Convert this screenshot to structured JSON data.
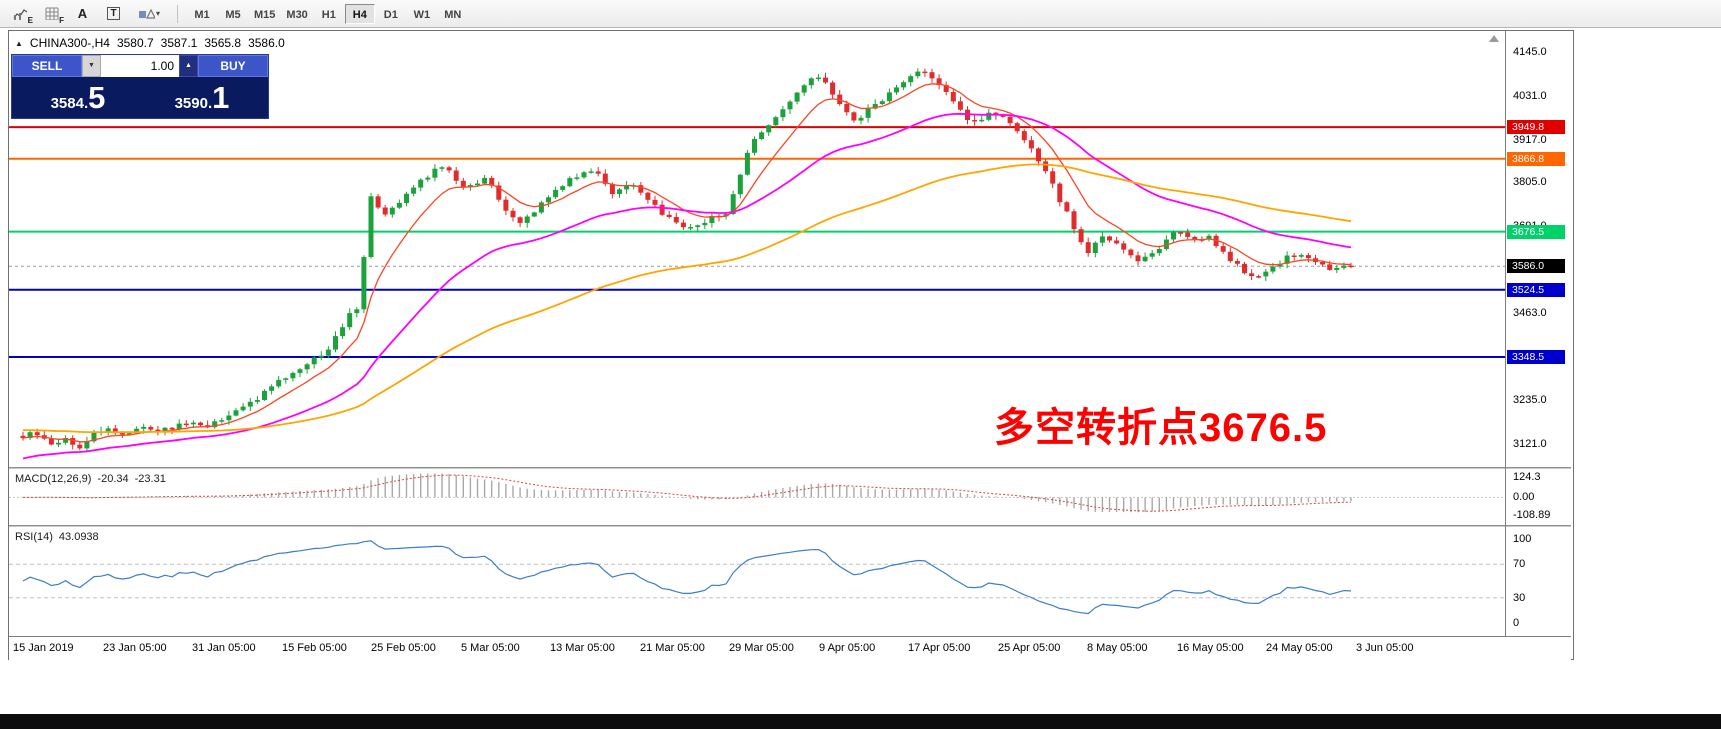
{
  "colors": {
    "candle_up": "#1ca23c",
    "candle_down": "#e02c2c",
    "ma_fast": "#ff4422",
    "ma_mid": "#ff00ff",
    "ma_slow": "#ffa500",
    "macd_hist": "#a8a8a8",
    "macd_signal": "#e04040",
    "rsi_line": "#3b7dc8",
    "level_red": "#e00000",
    "level_orange": "#ff6600",
    "level_green": "#00d26a",
    "level_blue": "#0000cc",
    "current_badge": "#000000"
  },
  "toolbar": {
    "tools": {
      "tool_e_badge": "E",
      "tool_f_badge": "F",
      "text_tool_glyph": "A",
      "label_tool_glyph": "T",
      "shapes_caret": "▾"
    },
    "timeframes": [
      "M1",
      "M5",
      "M15",
      "M30",
      "H1",
      "H4",
      "D1",
      "W1",
      "MN"
    ],
    "active_timeframe": "H4"
  },
  "chart": {
    "symbol_line": {
      "collapse_glyph": "▲",
      "symbol": "CHINA300-,H4",
      "open": "3580.7",
      "high": "3587.1",
      "low": "3565.8",
      "close": "3586.0"
    },
    "trade_panel": {
      "sell_label": "SELL",
      "buy_label": "BUY",
      "volume": "1.00",
      "spin_down_glyph": "▼",
      "spin_up_glyph": "▲",
      "sell_price_base": "3584.",
      "sell_price_big": "5",
      "buy_price_base": "3590.",
      "buy_price_big": "1"
    },
    "annotation": "多空转折点3676.5",
    "current_price_label": "3586.0",
    "y_ticks": [
      {
        "label": "4145.0",
        "price": 4145.0
      },
      {
        "label": "4031.0",
        "price": 4031.0
      },
      {
        "label": "3917.0",
        "price": 3917.0
      },
      {
        "label": "3805.0",
        "price": 3805.0
      },
      {
        "label": "3691.0",
        "price": 3691.0
      },
      {
        "label": "3577.0",
        "price": 3577.0
      },
      {
        "label": "3463.0",
        "price": 3463.0
      },
      {
        "label": "3349.0",
        "price": 3349.0
      },
      {
        "label": "3235.0",
        "price": 3235.0
      },
      {
        "label": "3121.0",
        "price": 3121.0
      }
    ],
    "macd": {
      "name": "MACD(12,26,9)",
      "value": "-20.34",
      "signal_value": "-23.31",
      "ticks": [
        {
          "label": "124.3",
          "value": 124.3
        },
        {
          "label": "0.00",
          "value": 0
        },
        {
          "label": "-108.89",
          "value": -108.89
        }
      ]
    },
    "rsi": {
      "name": "RSI(14)",
      "value": "43.0938",
      "ticks": [
        {
          "label": "100",
          "value": 100
        },
        {
          "label": "70",
          "value": 70
        },
        {
          "label": "30",
          "value": 30
        },
        {
          "label": "0",
          "value": 0
        }
      ]
    },
    "time_labels": [
      "15 Jan 2019",
      "23 Jan 05:00",
      "31 Jan 05:00",
      "15 Feb 05:00",
      "25 Feb 05:00",
      "5 Mar 05:00",
      "13 Mar 05:00",
      "21 Mar 05:00",
      "29 Mar 05:00",
      "9 Apr 05:00",
      "17 Apr 05:00",
      "25 Apr 05:00",
      "8 May 05:00",
      "16 May 05:00",
      "24 May 05:00",
      "3 Jun 05:00"
    ]
  },
  "chart_data": {
    "type": "candlestick",
    "title": "CHINA300- H4",
    "symbol": "CHINA300-",
    "timeframe": "H4",
    "ohlc_current": {
      "open": 3580.7,
      "high": 3587.1,
      "low": 3565.8,
      "close": 3586.0
    },
    "current_price": 3586.0,
    "last_close": 3586.0,
    "candle_count": 188,
    "ylim": [
      3061,
      4201
    ],
    "macd_ylim": [
      -170,
      175
    ],
    "macd_current": -20.34,
    "macd_signal_current": -23.31,
    "rsi_current": 43.0938,
    "rsi_levels": [
      70,
      30
    ],
    "levels": [
      {
        "label": "3949.8",
        "price": 3949.8,
        "color": "#e00000",
        "width": 2
      },
      {
        "label": "3866.8",
        "price": 3866.8,
        "color": "#ff6600",
        "width": 2
      },
      {
        "label": "3676.5",
        "price": 3676.5,
        "color": "#00d26a",
        "width": 2
      },
      {
        "label": "3524.5",
        "price": 3524.5,
        "color": "#0000cc",
        "width": 2
      },
      {
        "label": "3348.5",
        "price": 3348.5,
        "color": "#0000cc",
        "width": 2
      }
    ],
    "moving_averages": [
      {
        "name": "fast-ma",
        "period": 9,
        "seed": null,
        "color": "#ff4422",
        "width": 1.3
      },
      {
        "name": "medium-ma",
        "period": 34,
        "seed": 3080,
        "color": "#ff00ff",
        "width": 1.8
      },
      {
        "name": "slow-ma",
        "period": 85,
        "seed": 3158,
        "color": "#ffa500",
        "width": 1.8
      }
    ],
    "x_axis_labels": [
      "15 Jan 2019",
      "23 Jan 05:00",
      "31 Jan 05:00",
      "15 Feb 05:00",
      "25 Feb 05:00",
      "5 Mar 05:00",
      "13 Mar 05:00",
      "21 Mar 05:00",
      "29 Mar 05:00",
      "9 Apr 05:00",
      "17 Apr 05:00",
      "25 Apr 05:00",
      "8 May 05:00",
      "16 May 05:00",
      "24 May 05:00",
      "3 Jun 05:00"
    ],
    "price_anchors": [
      [
        0.0,
        3140
      ],
      [
        0.01,
        3150
      ],
      [
        0.02,
        3118
      ],
      [
        0.032,
        3136
      ],
      [
        0.042,
        3106
      ],
      [
        0.052,
        3148
      ],
      [
        0.062,
        3162
      ],
      [
        0.075,
        3146
      ],
      [
        0.09,
        3168
      ],
      [
        0.105,
        3154
      ],
      [
        0.12,
        3176
      ],
      [
        0.14,
        3170
      ],
      [
        0.155,
        3192
      ],
      [
        0.17,
        3228
      ],
      [
        0.185,
        3262
      ],
      [
        0.2,
        3302
      ],
      [
        0.219,
        3344
      ],
      [
        0.232,
        3376
      ],
      [
        0.245,
        3462
      ],
      [
        0.252,
        3478
      ],
      [
        0.262,
        3772
      ],
      [
        0.272,
        3724
      ],
      [
        0.286,
        3766
      ],
      [
        0.3,
        3810
      ],
      [
        0.315,
        3852
      ],
      [
        0.33,
        3796
      ],
      [
        0.349,
        3814
      ],
      [
        0.36,
        3750
      ],
      [
        0.372,
        3694
      ],
      [
        0.386,
        3736
      ],
      [
        0.4,
        3784
      ],
      [
        0.416,
        3824
      ],
      [
        0.43,
        3840
      ],
      [
        0.444,
        3780
      ],
      [
        0.458,
        3802
      ],
      [
        0.472,
        3750
      ],
      [
        0.484,
        3720
      ],
      [
        0.498,
        3684
      ],
      [
        0.512,
        3704
      ],
      [
        0.53,
        3724
      ],
      [
        0.547,
        3900
      ],
      [
        0.56,
        3956
      ],
      [
        0.575,
        4004
      ],
      [
        0.59,
        4064
      ],
      [
        0.6,
        4084
      ],
      [
        0.613,
        4024
      ],
      [
        0.625,
        3960
      ],
      [
        0.64,
        4004
      ],
      [
        0.655,
        4044
      ],
      [
        0.67,
        4086
      ],
      [
        0.678,
        4104
      ],
      [
        0.69,
        4060
      ],
      [
        0.702,
        4004
      ],
      [
        0.715,
        3960
      ],
      [
        0.73,
        3992
      ],
      [
        0.745,
        3950
      ],
      [
        0.757,
        3900
      ],
      [
        0.768,
        3844
      ],
      [
        0.778,
        3778
      ],
      [
        0.79,
        3698
      ],
      [
        0.8,
        3620
      ],
      [
        0.813,
        3660
      ],
      [
        0.825,
        3642
      ],
      [
        0.84,
        3600
      ],
      [
        0.855,
        3634
      ],
      [
        0.868,
        3680
      ],
      [
        0.88,
        3658
      ],
      [
        0.892,
        3664
      ],
      [
        0.905,
        3614
      ],
      [
        0.918,
        3576
      ],
      [
        0.93,
        3554
      ],
      [
        0.947,
        3600
      ],
      [
        0.96,
        3620
      ],
      [
        0.972,
        3600
      ],
      [
        0.985,
        3576
      ],
      [
        1.0,
        3586
      ]
    ]
  }
}
